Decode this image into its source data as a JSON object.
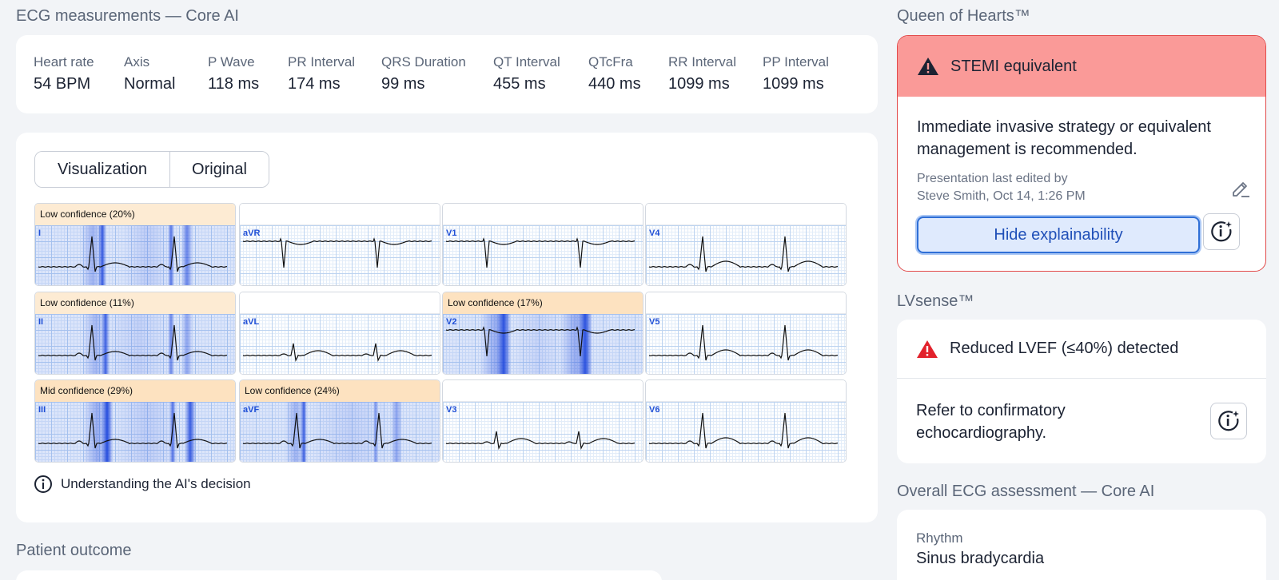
{
  "titles": {
    "measurements": "ECG measurements — Core AI",
    "qoh": "Queen of Hearts™",
    "lvsense": "LVsense™",
    "overall": "Overall ECG assessment — Core AI",
    "outcome": "Patient outcome"
  },
  "measurements": [
    {
      "label": "Heart rate",
      "value": "54 BPM"
    },
    {
      "label": "Axis",
      "value": "Normal"
    },
    {
      "label": "P Wave",
      "value": "118 ms"
    },
    {
      "label": "PR Interval",
      "value": "174 ms"
    },
    {
      "label": "QRS Duration",
      "value": "99 ms"
    },
    {
      "label": "QT Interval",
      "value": "455 ms"
    },
    {
      "label": "QTcFra",
      "value": "440 ms"
    },
    {
      "label": "RR Interval",
      "value": "1099 ms"
    },
    {
      "label": "PP Interval",
      "value": "1099 ms"
    }
  ],
  "view_toggle": {
    "visualization": "Visualization",
    "original": "Original",
    "selected": "Visualization"
  },
  "leads": [
    {
      "name": "I",
      "confidence": "Low confidence (20%)"
    },
    {
      "name": "aVR",
      "confidence": ""
    },
    {
      "name": "V1",
      "confidence": ""
    },
    {
      "name": "V4",
      "confidence": ""
    },
    {
      "name": "II",
      "confidence": "Low confidence (11%)"
    },
    {
      "name": "aVL",
      "confidence": ""
    },
    {
      "name": "V2",
      "confidence": "Low confidence (17%)"
    },
    {
      "name": "V5",
      "confidence": ""
    },
    {
      "name": "III",
      "confidence": "Mid confidence (29%)"
    },
    {
      "name": "aVF",
      "confidence": "Low confidence (24%)"
    },
    {
      "name": "V3",
      "confidence": ""
    },
    {
      "name": "V6",
      "confidence": ""
    }
  ],
  "ai_decision_link": "Understanding the AI's decision",
  "qoh": {
    "status": "STEMI equivalent",
    "recommendation": "Immediate invasive strategy or equivalent management is recommended.",
    "edited_line1": "Presentation last edited by",
    "edited_line2": "Steve Smith, Oct 14, 1:26 PM",
    "hide_button": "Hide explainability"
  },
  "lvsense": {
    "status": "Reduced LVEF (≤40%) detected",
    "recommendation": "Refer to confirmatory echocardiography."
  },
  "overall": {
    "rhythm_label": "Rhythm",
    "rhythm_value": "Sinus bradycardia"
  },
  "colors": {
    "alert_red": "#e24a4a",
    "alert_header": "#fa9a98",
    "accent_blue": "#2f6fd6",
    "confidence_bg": "#fde2c0"
  }
}
